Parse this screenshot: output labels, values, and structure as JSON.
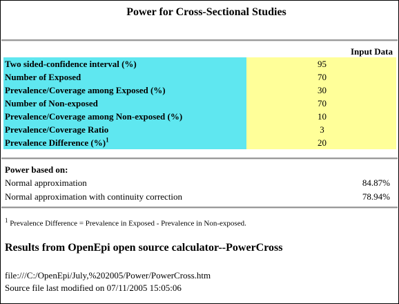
{
  "title": "Power for Cross-Sectional Studies",
  "input_header": "Input Data",
  "inputs": [
    {
      "label": "Two sided-confidence interval (%)",
      "value": "95",
      "sup": ""
    },
    {
      "label": "Number of Exposed",
      "value": "70",
      "sup": ""
    },
    {
      "label": "Prevalence/Coverage among Exposed (%)",
      "value": "30",
      "sup": ""
    },
    {
      "label": "Number of Non-exposed",
      "value": "70",
      "sup": ""
    },
    {
      "label": "Prevalence/Coverage among Non-exposed (%)",
      "value": "10",
      "sup": ""
    },
    {
      "label": "Prevalence/Coverage Ratio",
      "value": "3",
      "sup": ""
    },
    {
      "label": "Prevalence Difference (%)",
      "value": "20",
      "sup": "1"
    }
  ],
  "power": {
    "heading": "Power based on:",
    "rows": [
      {
        "label": "Normal approximation",
        "value": "84.87%"
      },
      {
        "label": "Normal approximation with continuity correction",
        "value": "78.94%"
      }
    ]
  },
  "footnote": {
    "marker": "1",
    "text": "Prevalence Difference = Prevalence in Exposed - Prevalence in Non-exposed."
  },
  "results_title": "Results from OpenEpi open source calculator--PowerCross",
  "file_path": "file:///C:/OpenEpi/July,%202005/Power/PowerCross.htm",
  "modified": "Source file last modified on 07/11/2005 15:05:06"
}
